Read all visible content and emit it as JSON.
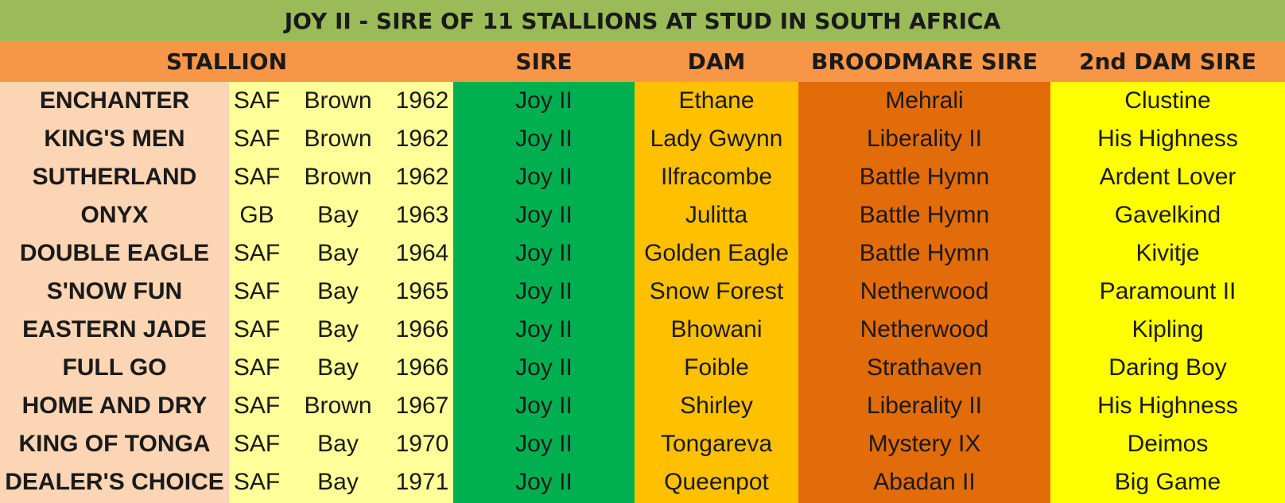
{
  "title": "JOY II - SIRE OF 11 STALLIONS AT STUD IN SOUTH AFRICA",
  "headers": {
    "stallion": "STALLION",
    "sire": "SIRE",
    "dam": "DAM",
    "broodmare_sire": "BROODMARE SIRE",
    "second_dam_sire": "2nd DAM SIRE"
  },
  "colors": {
    "title_bg": "#9bbb59",
    "header_bg": "#f79646",
    "stallion_col": "#fcd5b4",
    "info_col": "#ffff99",
    "sire_col": "#00b050",
    "dam_col": "#ffc000",
    "broodmare_col": "#e26b0a",
    "second_dam_col": "#ffff00"
  },
  "rows": [
    {
      "stallion": "ENCHANTER",
      "country": "SAF",
      "color": "Brown",
      "year": "1962",
      "sire": "Joy II",
      "dam": "Ethane",
      "broodmare_sire": "Mehrali",
      "second_dam_sire": "Clustine"
    },
    {
      "stallion": "KING'S MEN",
      "country": "SAF",
      "color": "Brown",
      "year": "1962",
      "sire": "Joy II",
      "dam": "Lady Gwynn",
      "broodmare_sire": "Liberality II",
      "second_dam_sire": "His Highness"
    },
    {
      "stallion": "SUTHERLAND",
      "country": "SAF",
      "color": "Brown",
      "year": "1962",
      "sire": "Joy II",
      "dam": "Ilfracombe",
      "broodmare_sire": "Battle Hymn",
      "second_dam_sire": "Ardent Lover"
    },
    {
      "stallion": "ONYX",
      "country": "GB",
      "color": "Bay",
      "year": "1963",
      "sire": "Joy II",
      "dam": "Julitta",
      "broodmare_sire": "Battle Hymn",
      "second_dam_sire": "Gavelkind"
    },
    {
      "stallion": "DOUBLE EAGLE",
      "country": "SAF",
      "color": "Bay",
      "year": "1964",
      "sire": "Joy II",
      "dam": "Golden Eagle",
      "broodmare_sire": "Battle Hymn",
      "second_dam_sire": "Kivitje"
    },
    {
      "stallion": "S'NOW FUN",
      "country": "SAF",
      "color": "Bay",
      "year": "1965",
      "sire": "Joy II",
      "dam": "Snow Forest",
      "broodmare_sire": "Netherwood",
      "second_dam_sire": "Paramount II"
    },
    {
      "stallion": "EASTERN JADE",
      "country": "SAF",
      "color": "Bay",
      "year": "1966",
      "sire": "Joy II",
      "dam": "Bhowani",
      "broodmare_sire": "Netherwood",
      "second_dam_sire": "Kipling"
    },
    {
      "stallion": "FULL GO",
      "country": "SAF",
      "color": "Bay",
      "year": "1966",
      "sire": "Joy II",
      "dam": "Foible",
      "broodmare_sire": "Strathaven",
      "second_dam_sire": "Daring Boy"
    },
    {
      "stallion": "HOME AND DRY",
      "country": "SAF",
      "color": "Brown",
      "year": "1967",
      "sire": "Joy II",
      "dam": "Shirley",
      "broodmare_sire": "Liberality II",
      "second_dam_sire": "His Highness"
    },
    {
      "stallion": "KING OF TONGA",
      "country": "SAF",
      "color": "Bay",
      "year": "1970",
      "sire": "Joy II",
      "dam": "Tongareva",
      "broodmare_sire": "Mystery IX",
      "second_dam_sire": "Deimos"
    },
    {
      "stallion": "DEALER'S CHOICE",
      "country": "SAF",
      "color": "Bay",
      "year": "1971",
      "sire": "Joy II",
      "dam": "Queenpot",
      "broodmare_sire": "Abadan II",
      "second_dam_sire": "Big Game"
    }
  ]
}
